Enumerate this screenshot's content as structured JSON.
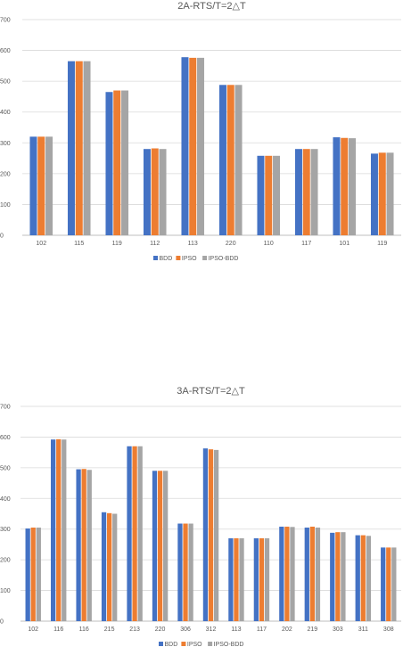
{
  "colors": {
    "BDD": "#4472C4",
    "IPSO": "#ED7D31",
    "IPSO-BDD": "#A5A5A5"
  },
  "chart_data": [
    {
      "type": "bar",
      "title": "2A-RTS/T=2△T",
      "categories": [
        "102",
        "115",
        "119",
        "112",
        "113",
        "220",
        "110",
        "117",
        "101",
        "119"
      ],
      "series": [
        {
          "name": "BDD",
          "values": [
            320,
            565,
            465,
            280,
            578,
            488,
            258,
            280,
            318,
            265
          ]
        },
        {
          "name": "IPSO",
          "values": [
            320,
            565,
            470,
            282,
            576,
            488,
            258,
            280,
            316,
            268
          ]
        },
        {
          "name": "IPSO-BDD",
          "values": [
            320,
            565,
            470,
            280,
            576,
            488,
            258,
            280,
            315,
            268
          ]
        }
      ],
      "ylim": [
        0,
        700
      ],
      "yticks": [
        "0",
        "100",
        "200",
        "300",
        "400",
        "500",
        "600",
        "700"
      ],
      "grid": true,
      "legend": "bottom"
    },
    {
      "type": "bar",
      "title": "3A-RTS/T=2△T",
      "categories": [
        "102",
        "116",
        "116",
        "215",
        "213",
        "220",
        "306",
        "312",
        "113",
        "117",
        "202",
        "219",
        "303",
        "311",
        "308"
      ],
      "series": [
        {
          "name": "BDD",
          "values": [
            302,
            592,
            495,
            355,
            570,
            490,
            318,
            563,
            270,
            270,
            308,
            305,
            288,
            280,
            240
          ]
        },
        {
          "name": "IPSO",
          "values": [
            305,
            593,
            496,
            352,
            570,
            490,
            318,
            560,
            270,
            270,
            308,
            308,
            290,
            280,
            240
          ]
        },
        {
          "name": "IPSO-BDD",
          "values": [
            305,
            592,
            493,
            350,
            570,
            490,
            318,
            558,
            270,
            270,
            307,
            305,
            290,
            278,
            240
          ]
        }
      ],
      "ylim": [
        0,
        700
      ],
      "yticks": [
        "0",
        "100",
        "200",
        "300",
        "400",
        "500",
        "600",
        "700"
      ],
      "grid": true,
      "legend": "bottom"
    }
  ]
}
